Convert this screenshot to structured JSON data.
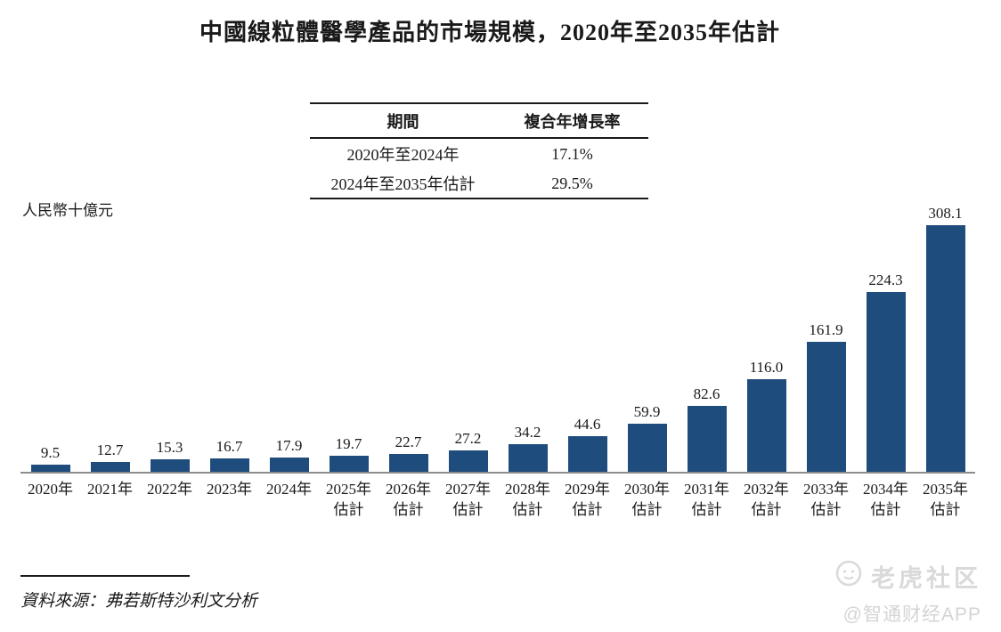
{
  "title": "中國線粒體醫學產品的市場規模，2020年至2035年估計",
  "cagr_table": {
    "headers": [
      "期間",
      "複合年增長率"
    ],
    "rows": [
      {
        "period": "2020年至2024年",
        "cagr": "17.1%"
      },
      {
        "period": "2024年至2035年估計",
        "cagr": "29.5%"
      }
    ]
  },
  "unit_label": "人民幣十億元",
  "source": "資料來源：弗若斯特沙利文分析",
  "watermark": {
    "logo_icon": "tiger-logo",
    "community": "老虎社区",
    "app": "@智通财经APP"
  },
  "colors": {
    "bar": "#1E4C7C",
    "axis": "#8C8C8C",
    "text": "#1A1A1A",
    "watermark": "#D9D9D9"
  },
  "chart_data": {
    "type": "bar",
    "title": "中國線粒體醫學產品的市場規模，2020年至2035年估計",
    "ylabel": "人民幣十億元",
    "xlabel": "",
    "ylim": [
      0,
      320
    ],
    "grid": false,
    "legend": "none",
    "categories": [
      {
        "label": "2020年",
        "sub": ""
      },
      {
        "label": "2021年",
        "sub": ""
      },
      {
        "label": "2022年",
        "sub": ""
      },
      {
        "label": "2023年",
        "sub": ""
      },
      {
        "label": "2024年",
        "sub": ""
      },
      {
        "label": "2025年",
        "sub": "估計"
      },
      {
        "label": "2026年",
        "sub": "估計"
      },
      {
        "label": "2027年",
        "sub": "估計"
      },
      {
        "label": "2028年",
        "sub": "估計"
      },
      {
        "label": "2029年",
        "sub": "估計"
      },
      {
        "label": "2030年",
        "sub": "估計"
      },
      {
        "label": "2031年",
        "sub": "估計"
      },
      {
        "label": "2032年",
        "sub": "估計"
      },
      {
        "label": "2033年",
        "sub": "估計"
      },
      {
        "label": "2034年",
        "sub": "估計"
      },
      {
        "label": "2035年",
        "sub": "估計"
      }
    ],
    "values": [
      9.5,
      12.7,
      15.3,
      16.7,
      17.9,
      19.7,
      22.7,
      27.2,
      34.2,
      44.6,
      59.9,
      82.6,
      116.0,
      161.9,
      224.3,
      308.1
    ],
    "value_labels": [
      "9.5",
      "12.7",
      "15.3",
      "16.7",
      "17.9",
      "19.7",
      "22.7",
      "27.2",
      "34.2",
      "44.6",
      "59.9",
      "82.6",
      "116.0",
      "161.9",
      "224.3",
      "308.1"
    ]
  }
}
